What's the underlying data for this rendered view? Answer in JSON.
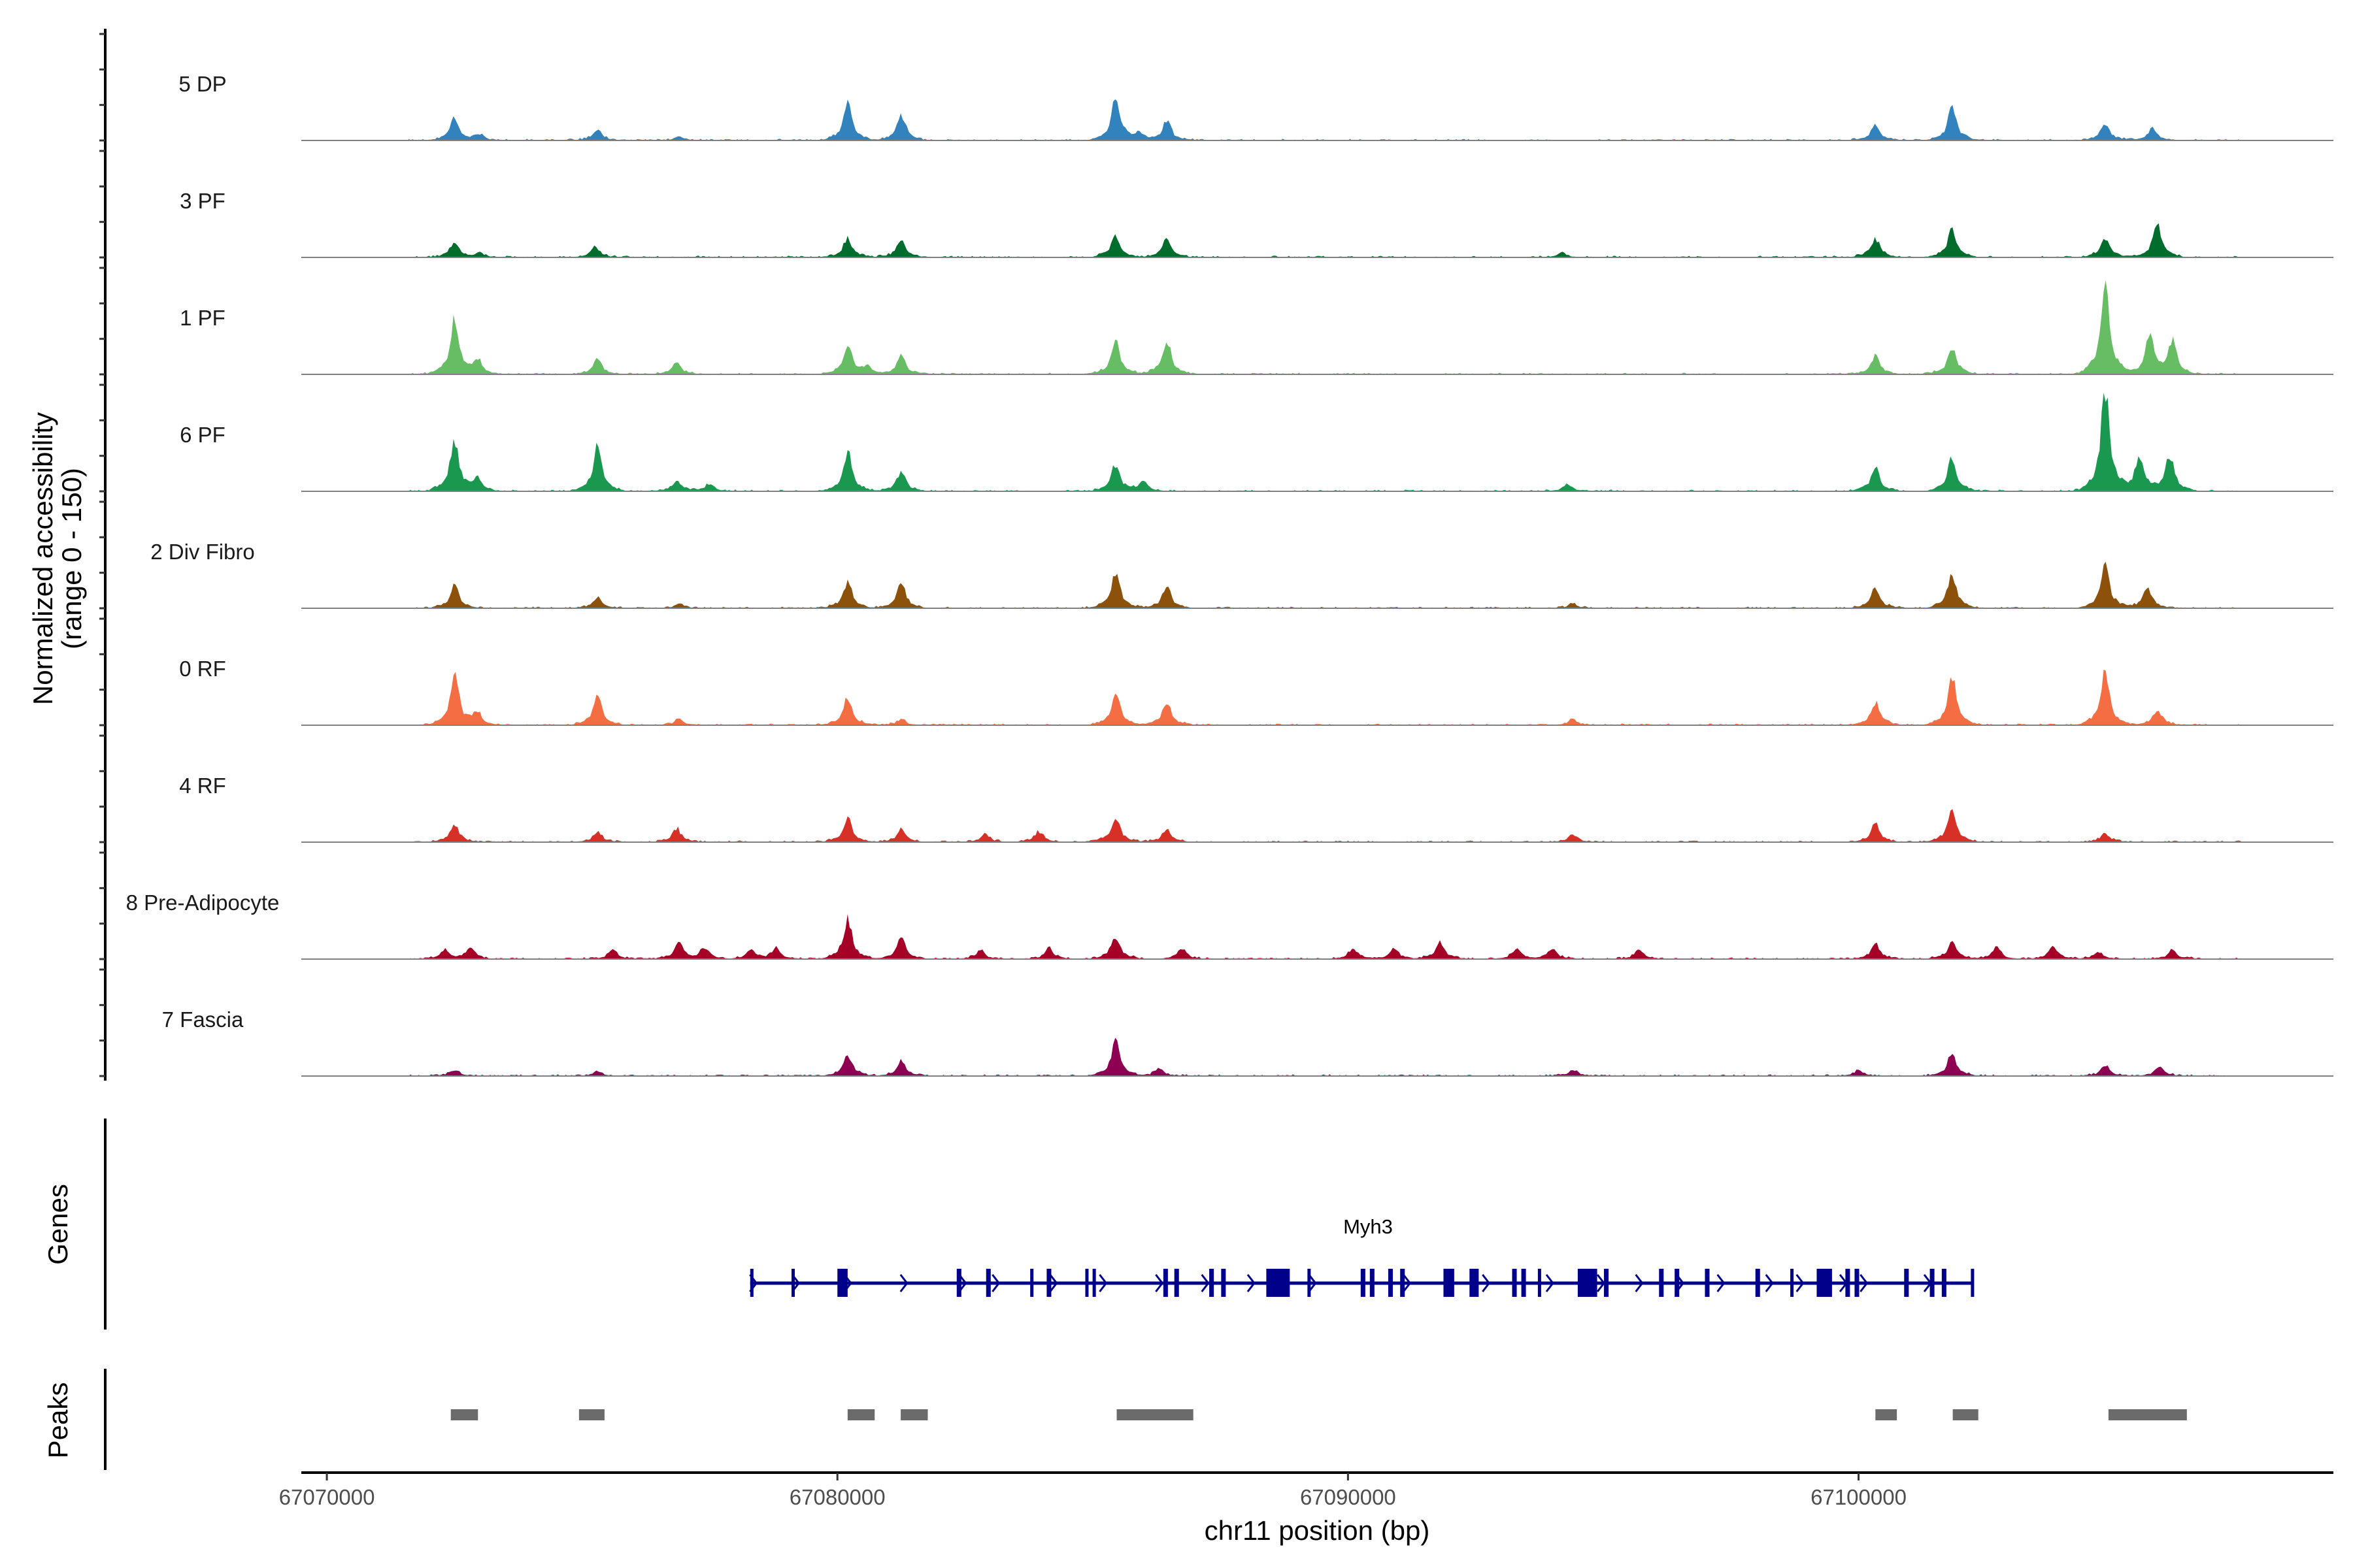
{
  "chart_data": {
    "type": "area",
    "title": "",
    "xlabel": "chr11 position (bp)",
    "ylabel": "Normalized accessibility",
    "ylabel_sub": "(range 0 - 150)",
    "ylim": [
      0,
      150
    ],
    "xlim": [
      67069500,
      67109300
    ],
    "x_ticks": [
      67070000,
      67080000,
      67090000,
      67100000
    ],
    "x_tick_labels": [
      "67070000",
      "67080000",
      "67090000",
      "67100000"
    ],
    "coverage_range": [
      67071600,
      67107500
    ],
    "tracks": [
      {
        "name": "5 DP",
        "color": "#3182bd",
        "peaks": [
          [
            67072500,
            29
          ],
          [
            67073000,
            8
          ],
          [
            67075300,
            14
          ],
          [
            67076900,
            5
          ],
          [
            67080200,
            49
          ],
          [
            67081250,
            35
          ],
          [
            67085450,
            57
          ],
          [
            67085900,
            10
          ],
          [
            67086450,
            25
          ],
          [
            67100330,
            21
          ],
          [
            67101830,
            43
          ],
          [
            67104830,
            23
          ],
          [
            67105750,
            16
          ]
        ]
      },
      {
        "name": "3 PF",
        "color": "#006d2c",
        "peaks": [
          [
            67072500,
            20
          ],
          [
            67073000,
            6
          ],
          [
            67075250,
            13
          ],
          [
            67080200,
            25
          ],
          [
            67081250,
            23
          ],
          [
            67085450,
            29
          ],
          [
            67086450,
            25
          ],
          [
            67094200,
            6
          ],
          [
            67100330,
            25
          ],
          [
            67101830,
            37
          ],
          [
            67104830,
            27
          ],
          [
            67105850,
            43
          ]
        ]
      },
      {
        "name": "1 PF",
        "color": "#66bd63",
        "peaks": [
          [
            67072500,
            72
          ],
          [
            67072950,
            20
          ],
          [
            67075300,
            21
          ],
          [
            67076850,
            16
          ],
          [
            67080200,
            39
          ],
          [
            67080600,
            10
          ],
          [
            67081250,
            25
          ],
          [
            67085450,
            43
          ],
          [
            67086450,
            45
          ],
          [
            67100330,
            25
          ],
          [
            67101830,
            35
          ],
          [
            67104830,
            123
          ],
          [
            67105700,
            49
          ],
          [
            67106150,
            43
          ]
        ]
      },
      {
        "name": "6 PF",
        "color": "#1a9850",
        "peaks": [
          [
            67072500,
            68
          ],
          [
            67072950,
            18
          ],
          [
            67075300,
            58
          ],
          [
            67076850,
            14
          ],
          [
            67077500,
            10
          ],
          [
            67080200,
            53
          ],
          [
            67081250,
            27
          ],
          [
            67085450,
            35
          ],
          [
            67086000,
            14
          ],
          [
            67094300,
            10
          ],
          [
            67100330,
            31
          ],
          [
            67101830,
            43
          ],
          [
            67104830,
            131
          ],
          [
            67105500,
            49
          ],
          [
            67106100,
            49
          ]
        ]
      },
      {
        "name": "2 Div Fibro",
        "color": "#8c510a",
        "peaks": [
          [
            67072500,
            31
          ],
          [
            67075300,
            14
          ],
          [
            67076900,
            6
          ],
          [
            67080200,
            35
          ],
          [
            67081250,
            33
          ],
          [
            67085450,
            49
          ],
          [
            67086450,
            29
          ],
          [
            67094400,
            6
          ],
          [
            67100330,
            27
          ],
          [
            67101830,
            45
          ],
          [
            67104830,
            55
          ],
          [
            67105650,
            27
          ]
        ]
      },
      {
        "name": "0 RF",
        "color": "#f46d43",
        "peaks": [
          [
            67072500,
            66
          ],
          [
            67072950,
            16
          ],
          [
            67075300,
            39
          ],
          [
            67076900,
            8
          ],
          [
            67080200,
            35
          ],
          [
            67081250,
            8
          ],
          [
            67085450,
            43
          ],
          [
            67086450,
            31
          ],
          [
            67094400,
            8
          ],
          [
            67100330,
            31
          ],
          [
            67101830,
            62
          ],
          [
            67104830,
            70
          ],
          [
            67105850,
            20
          ]
        ]
      },
      {
        "name": "4 RF",
        "color": "#d73027",
        "peaks": [
          [
            67072500,
            23
          ],
          [
            67075300,
            14
          ],
          [
            67076850,
            18
          ],
          [
            67080200,
            31
          ],
          [
            67081250,
            16
          ],
          [
            67082900,
            10
          ],
          [
            67083950,
            14
          ],
          [
            67085450,
            33
          ],
          [
            67086450,
            18
          ],
          [
            67094400,
            10
          ],
          [
            67100330,
            23
          ],
          [
            67101830,
            43
          ],
          [
            67104830,
            12
          ]
        ]
      },
      {
        "name": "8 Pre-Adipocyte",
        "color": "#a50026",
        "peaks": [
          [
            67072300,
            12
          ],
          [
            67072800,
            15
          ],
          [
            67075600,
            12
          ],
          [
            67076900,
            22
          ],
          [
            67077400,
            15
          ],
          [
            67078300,
            12
          ],
          [
            67078800,
            14
          ],
          [
            67080200,
            51
          ],
          [
            67081250,
            27
          ],
          [
            67082800,
            12
          ],
          [
            67084150,
            14
          ],
          [
            67085450,
            31
          ],
          [
            67086750,
            14
          ],
          [
            67090100,
            14
          ],
          [
            67090900,
            14
          ],
          [
            67091800,
            22
          ],
          [
            67093300,
            14
          ],
          [
            67094000,
            14
          ],
          [
            67095700,
            12
          ],
          [
            67100330,
            20
          ],
          [
            67101830,
            23
          ],
          [
            67102700,
            16
          ],
          [
            67103800,
            16
          ],
          [
            67104700,
            10
          ],
          [
            67106150,
            12
          ]
        ]
      },
      {
        "name": "7 Fascia",
        "color": "#8e0152",
        "peaks": [
          [
            67072500,
            8
          ],
          [
            67075300,
            6
          ],
          [
            67080200,
            27
          ],
          [
            67081250,
            20
          ],
          [
            67085450,
            45
          ],
          [
            67086300,
            10
          ],
          [
            67094400,
            8
          ],
          [
            67100000,
            8
          ],
          [
            67101830,
            29
          ],
          [
            67104830,
            14
          ],
          [
            67105900,
            12
          ]
        ]
      }
    ],
    "genes": {
      "panel_label": "Genes",
      "color": "#00008b",
      "items": [
        {
          "name": "Myh3",
          "strand": "+",
          "start": 67078292,
          "end": 67102259,
          "exons": [
            [
              67078292,
              40
            ],
            [
              67079101,
              40
            ],
            [
              67080000,
              200
            ],
            [
              67082337,
              90
            ],
            [
              67082913,
              90
            ],
            [
              67083776,
              40
            ],
            [
              67084099,
              90
            ],
            [
              67084855,
              40
            ],
            [
              67084998,
              40
            ],
            [
              67086383,
              90
            ],
            [
              67086599,
              90
            ],
            [
              67087282,
              90
            ],
            [
              67087516,
              90
            ],
            [
              67088400,
              460
            ],
            [
              67089206,
              60
            ],
            [
              67090249,
              90
            ],
            [
              67090428,
              90
            ],
            [
              67090788,
              90
            ],
            [
              67091022,
              90
            ],
            [
              67091870,
              210
            ],
            [
              67092380,
              180
            ],
            [
              67093215,
              90
            ],
            [
              67093395,
              90
            ],
            [
              67093719,
              60
            ],
            [
              67094500,
              380
            ],
            [
              67095013,
              90
            ],
            [
              67096092,
              90
            ],
            [
              67096398,
              90
            ],
            [
              67096991,
              90
            ],
            [
              67097980,
              90
            ],
            [
              67098663,
              60
            ],
            [
              67099180,
              300
            ],
            [
              67099742,
              90
            ],
            [
              67099922,
              90
            ],
            [
              67100893,
              90
            ],
            [
              67101396,
              90
            ],
            [
              67101630,
              90
            ],
            [
              67102200,
              60
            ]
          ],
          "arrows": [
            67078350,
            67079180,
            67080200,
            67081300,
            67082450,
            67083100,
            67084230,
            67085200,
            67086300,
            67087200,
            67088100,
            67089300,
            67091150,
            67092700,
            67093950,
            67094950,
            67095700,
            67096500,
            67097300,
            67098250,
            67098850,
            67099700,
            67100100,
            67101350
          ]
        }
      ]
    },
    "peaks": {
      "panel_label": "Peaks",
      "color": "#6b6b6b",
      "regions": [
        [
          67072428,
          67072960
        ],
        [
          67074939,
          67075439
        ],
        [
          67080200,
          67080730
        ],
        [
          67081240,
          67081770
        ],
        [
          67085470,
          67086970
        ],
        [
          67100330,
          67100750
        ],
        [
          67101845,
          67102345
        ],
        [
          67104895,
          67106430
        ]
      ]
    }
  }
}
